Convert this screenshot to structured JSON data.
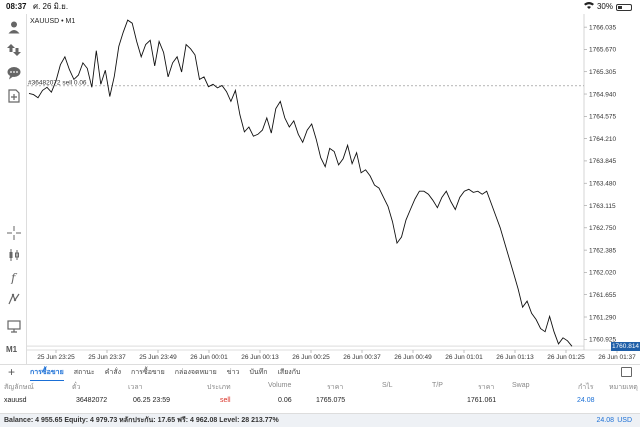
{
  "status_bar": {
    "time": "08:37",
    "date": "ศ. 26 มิ.ย.",
    "battery": "30%",
    "battery_level": 0.3
  },
  "left_toolbar": {
    "timeframe": "M1"
  },
  "chart": {
    "symbol": "XAUUSD • M1",
    "order_line_label": "#36482072 sell 0.06",
    "current_price": "1760.814"
  },
  "tabs": {
    "items": [
      "การซื้อขาย",
      "สถานะ",
      "คำสั่ง",
      "การซื้อขาย",
      "กล่องจดหมาย",
      "ข่าว",
      "บันทึก",
      "เสียงกับ"
    ],
    "active_index": 0
  },
  "table": {
    "headers": [
      "สัญลักษณ์",
      "ตั๋ว",
      "เวลา",
      "ประเภท",
      "Volume",
      "ราคา",
      "S/L",
      "T/P",
      "ราคา",
      "Swap",
      "กำไร",
      "หมายเหตุ"
    ],
    "row": {
      "symbol": "xauusd",
      "ticket": "36482072",
      "time": "06.25 23:59",
      "type": "sell",
      "volume": "0.06",
      "open_price": "1765.075",
      "current_price": "1761.061",
      "profit": "24.08"
    }
  },
  "footer": {
    "summary": "Balance: 4 955.65 Equity: 4 979.73 หลักประกัน: 17.65 ฟรี: 4 962.08 Level: 28 213.77%",
    "total": "24.08",
    "currency": "USD"
  },
  "chart_data": {
    "type": "line",
    "title": "XAUUSD • M1",
    "y_ticks": [
      "1766.035",
      "1765.670",
      "1765.305",
      "1764.940",
      "1764.575",
      "1764.210",
      "1763.845",
      "1763.480",
      "1763.115",
      "1762.750",
      "1762.385",
      "1762.020",
      "1761.655",
      "1761.290",
      "1760.925"
    ],
    "x_ticks": [
      "25 Jun 23:25",
      "25 Jun 23:37",
      "25 Jun 23:49",
      "26 Jun 00:01",
      "26 Jun 00:13",
      "26 Jun 00:25",
      "26 Jun 00:37",
      "26 Jun 00:49",
      "26 Jun 01:01",
      "26 Jun 01:13",
      "26 Jun 01:25",
      "26 Jun 01:37"
    ],
    "ylim": [
      1760.75,
      1766.25
    ],
    "order_level": 1765.075,
    "current": 1760.814,
    "values": [
      1764.95,
      1764.93,
      1764.88,
      1765.0,
      1765.05,
      1764.97,
      1765.15,
      1765.42,
      1765.55,
      1765.34,
      1765.18,
      1765.25,
      1765.45,
      1765.36,
      1765.05,
      1765.65,
      1765.1,
      1765.33,
      1764.9,
      1765.23,
      1765.72,
      1765.95,
      1766.15,
      1766.1,
      1765.8,
      1765.55,
      1765.75,
      1765.82,
      1765.4,
      1765.8,
      1765.62,
      1765.22,
      1765.45,
      1765.55,
      1765.3,
      1765.75,
      1765.68,
      1765.58,
      1765.18,
      1765.22,
      1765.06,
      1765.1,
      1765.04,
      1765.08,
      1764.98,
      1764.82,
      1765.0,
      1764.6,
      1764.32,
      1764.4,
      1764.25,
      1764.28,
      1764.35,
      1764.55,
      1764.3,
      1764.7,
      1764.82,
      1764.55,
      1764.4,
      1764.5,
      1764.28,
      1764.15,
      1764.35,
      1764.45,
      1764.2,
      1763.9,
      1763.75,
      1764.05,
      1764.0,
      1763.78,
      1763.88,
      1764.1,
      1763.8,
      1763.98,
      1763.65,
      1763.7,
      1763.6,
      1763.45,
      1763.4,
      1763.25,
      1763.1,
      1762.85,
      1762.5,
      1762.6,
      1762.88,
      1763.05,
      1763.22,
      1763.35,
      1763.35,
      1763.3,
      1763.2,
      1763.08,
      1763.25,
      1763.35,
      1763.18,
      1763.05,
      1763.25,
      1763.35,
      1763.38,
      1763.33,
      1763.35,
      1763.3,
      1763.35,
      1763.15,
      1762.95,
      1762.75,
      1762.5,
      1762.25,
      1762.0,
      1761.75,
      1761.45,
      1761.55,
      1761.35,
      1761.25,
      1761.1,
      1761.05,
      1761.3,
      1761.05,
      1760.85,
      1760.95,
      1760.9,
      1760.81
    ]
  }
}
